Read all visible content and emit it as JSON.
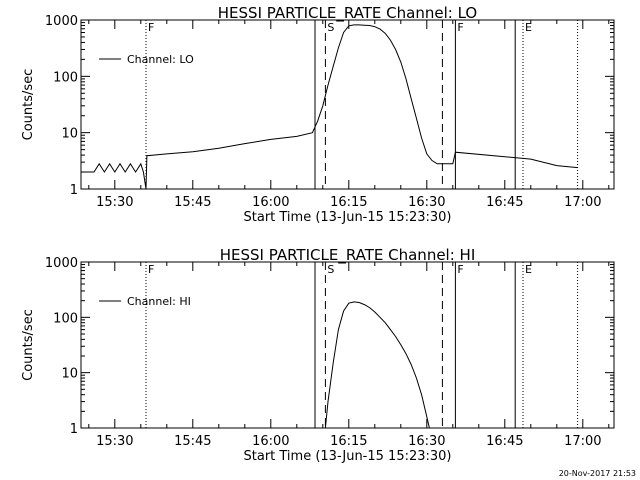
{
  "footer_timestamp": "20-Nov-2017 21:53",
  "chart_data": [
    {
      "type": "line",
      "title": "HESSI PARTICLE_RATE Channel: LO",
      "xlabel": "Start Time (13-Jun-15 15:23:30)",
      "ylabel": "Counts/sec",
      "y_scale": "log",
      "xlim": [
        "15:23:30",
        "17:06:00"
      ],
      "ylim": [
        1,
        1000
      ],
      "x_ticks": [
        "15:30",
        "15:45",
        "16:00",
        "16:15",
        "16:30",
        "16:45",
        "17:00"
      ],
      "y_ticks": [
        "1",
        "10",
        "100",
        "1000"
      ],
      "legend": {
        "label": "Channel: LO",
        "position": "top-left"
      },
      "series": [
        {
          "name": "Channel: LO",
          "x": [
            "15:23:30",
            "15:26:00",
            "15:27:00",
            "15:28:00",
            "15:29:00",
            "15:30:00",
            "15:31:00",
            "15:32:00",
            "15:33:00",
            "15:34:00",
            "15:35:00",
            "15:35:30",
            "15:36:00",
            "15:36:10",
            "15:40:00",
            "15:45:00",
            "15:50:00",
            "15:55:00",
            "16:00:00",
            "16:05:00",
            "16:08:00",
            "16:09:00",
            "16:10:00",
            "16:11:00",
            "16:12:00",
            "16:13:00",
            "16:14:00",
            "16:15:00",
            "16:16:00",
            "16:17:00",
            "16:18:00",
            "16:19:00",
            "16:20:00",
            "16:21:00",
            "16:22:00",
            "16:23:00",
            "16:24:00",
            "16:25:00",
            "16:26:00",
            "16:27:00",
            "16:28:00",
            "16:29:00",
            "16:30:00",
            "16:31:00",
            "16:32:00",
            "16:33:00",
            "16:34:00",
            "16:35:00",
            "16:35:30",
            "16:50:00",
            "16:55:00",
            "16:59:00"
          ],
          "y": [
            2.0,
            2.0,
            2.8,
            2.0,
            2.8,
            2.0,
            2.8,
            2.0,
            2.8,
            2.0,
            2.8,
            2.0,
            1.0,
            3.9,
            4.2,
            4.6,
            5.3,
            6.4,
            7.6,
            8.6,
            10,
            16,
            30,
            70,
            150,
            320,
            600,
            790,
            820,
            820,
            810,
            800,
            760,
            690,
            580,
            440,
            300,
            180,
            90,
            40,
            18,
            8,
            4.2,
            3.2,
            2.8,
            2.8,
            2.8,
            2.8,
            4.5,
            3.4,
            2.6,
            2.4
          ]
        }
      ],
      "vertical_markers": [
        {
          "time": "15:36:00",
          "label": "F",
          "style": "dotted"
        },
        {
          "time": "16:08:30",
          "label": "",
          "style": "solid"
        },
        {
          "time": "16:10:30",
          "label": "S",
          "style": "dashed"
        },
        {
          "time": "16:33:00",
          "label": "",
          "style": "dashed"
        },
        {
          "time": "16:35:30",
          "label": "F",
          "style": "solid"
        },
        {
          "time": "16:47:00",
          "label": "",
          "style": "solid"
        },
        {
          "time": "16:48:30",
          "label": "E",
          "style": "dotted"
        },
        {
          "time": "16:59:00",
          "label": "",
          "style": "dotted"
        }
      ],
      "data_gaps": [
        [
          "15:23:30",
          "15:24:00"
        ],
        [
          "16:47:00",
          "16:48:30"
        ]
      ]
    },
    {
      "type": "line",
      "title": "HESSI PARTICLE_RATE Channel: HI",
      "xlabel": "Start Time (13-Jun-15 15:23:30)",
      "ylabel": "Counts/sec",
      "y_scale": "log",
      "xlim": [
        "15:23:30",
        "17:06:00"
      ],
      "ylim": [
        1,
        1000
      ],
      "x_ticks": [
        "15:30",
        "15:45",
        "16:00",
        "16:15",
        "16:30",
        "16:45",
        "17:00"
      ],
      "y_ticks": [
        "1",
        "10",
        "100",
        "1000"
      ],
      "legend": {
        "label": "Channel: HI",
        "position": "top-left"
      },
      "series": [
        {
          "name": "Channel: HI",
          "x": [
            "16:10:30",
            "16:11:00",
            "16:12:00",
            "16:13:00",
            "16:14:00",
            "16:15:00",
            "16:16:00",
            "16:17:00",
            "16:18:00",
            "16:19:00",
            "16:20:00",
            "16:21:00",
            "16:22:00",
            "16:23:00",
            "16:24:00",
            "16:25:00",
            "16:26:00",
            "16:27:00",
            "16:28:00",
            "16:29:00",
            "16:30:00",
            "16:30:30"
          ],
          "y": [
            1,
            3,
            15,
            60,
            130,
            180,
            190,
            185,
            170,
            150,
            125,
            100,
            80,
            60,
            45,
            32,
            22,
            14,
            8,
            4,
            1.6,
            1
          ]
        }
      ],
      "vertical_markers": [
        {
          "time": "15:36:00",
          "label": "F",
          "style": "dotted"
        },
        {
          "time": "16:08:30",
          "label": "",
          "style": "solid"
        },
        {
          "time": "16:10:30",
          "label": "S",
          "style": "dashed"
        },
        {
          "time": "16:33:00",
          "label": "",
          "style": "dashed"
        },
        {
          "time": "16:35:30",
          "label": "F",
          "style": "solid"
        },
        {
          "time": "16:47:00",
          "label": "",
          "style": "solid"
        },
        {
          "time": "16:48:30",
          "label": "E",
          "style": "dotted"
        },
        {
          "time": "16:59:00",
          "label": "",
          "style": "dotted"
        }
      ]
    }
  ]
}
